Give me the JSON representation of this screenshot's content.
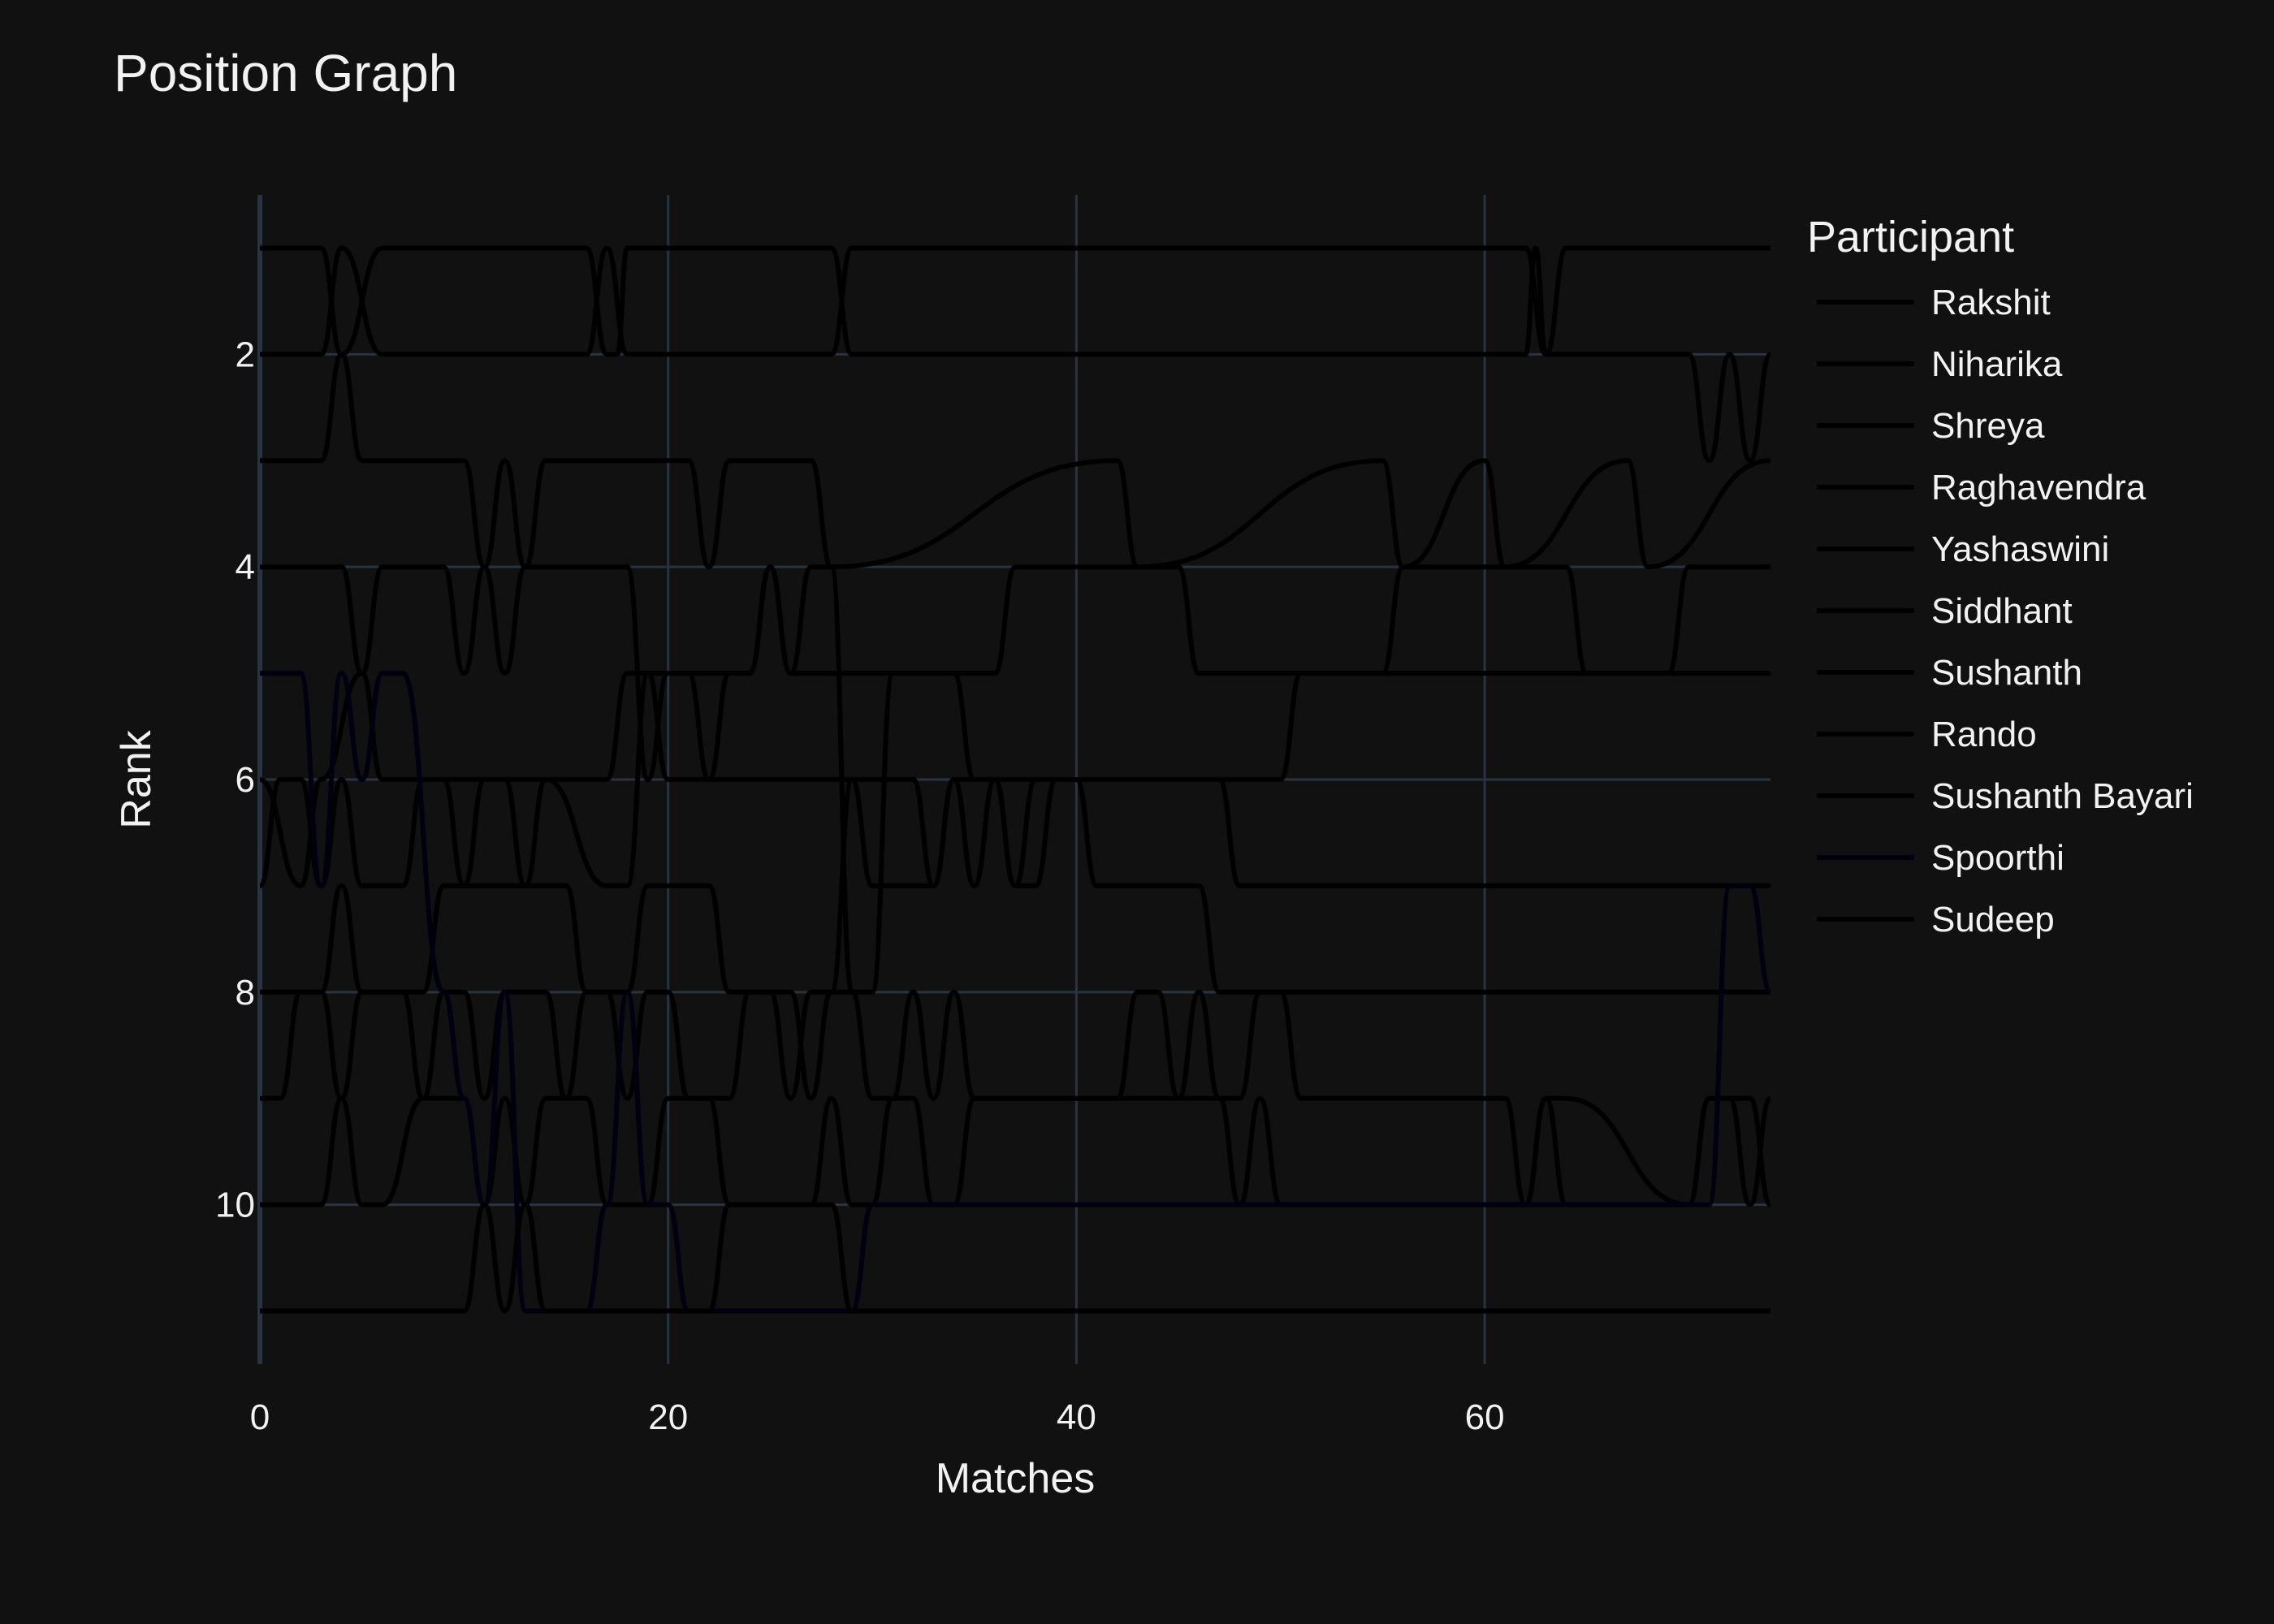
{
  "chart_data": {
    "type": "line",
    "title": "Position Graph",
    "xlabel": "Matches",
    "ylabel": "Rank",
    "xlim": [
      0,
      74
    ],
    "ylim": [
      11.5,
      0.5
    ],
    "y_reversed": true,
    "xticks": [
      0,
      20,
      40,
      60
    ],
    "yticks": [
      2,
      4,
      6,
      8,
      10
    ],
    "grid": true,
    "legend": {
      "title": "Participant",
      "placement": "right"
    },
    "colors": {
      "background": "#111111",
      "grid": "#283442",
      "text": "#f2f2f2",
      "line": "#000000",
      "line_alt": "#000010"
    },
    "series": [
      {
        "name": "Rakshit",
        "x": [
          0,
          3,
          4,
          6,
          7,
          16,
          17,
          17.5,
          18,
          28,
          29,
          62,
          62.5,
          63,
          64,
          74
        ],
        "y": [
          1,
          1,
          2,
          1,
          1,
          1,
          2,
          2,
          1,
          1,
          2,
          2,
          1,
          2,
          1,
          1
        ]
      },
      {
        "name": "Niharika",
        "x": [
          0,
          3,
          4,
          6,
          7,
          16,
          17,
          18,
          28,
          29,
          62,
          63,
          64,
          70,
          71,
          72,
          73,
          74
        ],
        "y": [
          2,
          2,
          1,
          2,
          2,
          2,
          1,
          2,
          2,
          1,
          1,
          2,
          2,
          2,
          3,
          2,
          3,
          2
        ]
      },
      {
        "name": "Shreya",
        "x": [
          0,
          3,
          4,
          5,
          10,
          11,
          12,
          13,
          14,
          21,
          22,
          23,
          27,
          28,
          42,
          43,
          55,
          56,
          60,
          61,
          67,
          68,
          74
        ],
        "y": [
          3,
          3,
          2,
          3,
          3,
          4,
          3,
          4,
          3,
          3,
          4,
          3,
          3,
          4,
          3,
          4,
          3,
          4,
          3,
          4,
          3,
          4,
          3
        ]
      },
      {
        "name": "Raghavendra",
        "x": [
          0,
          4,
          5,
          6,
          9,
          10,
          11,
          12,
          13,
          18,
          19,
          20,
          24,
          25,
          26,
          36,
          37,
          45,
          46,
          55,
          56,
          64,
          65,
          69,
          70,
          74
        ],
        "y": [
          4,
          4,
          5,
          4,
          4,
          5,
          4,
          5,
          4,
          4,
          6,
          5,
          5,
          4,
          5,
          5,
          4,
          4,
          5,
          5,
          4,
          4,
          5,
          5,
          4,
          4
        ]
      },
      {
        "name": "Yashaswini",
        "x": [
          0,
          2,
          3,
          5,
          6,
          7,
          14,
          17,
          18,
          19,
          21,
          22,
          23,
          29,
          30,
          33,
          34,
          35,
          36,
          37,
          38,
          39,
          47,
          48,
          74
        ],
        "y": [
          6,
          7,
          6,
          5,
          6,
          6,
          6,
          7,
          7,
          5,
          5,
          6,
          6,
          6,
          7,
          7,
          6,
          7,
          6,
          7,
          7,
          6,
          6,
          7,
          7
        ]
      },
      {
        "name": "Siddhant",
        "x": [
          0,
          1,
          2,
          3,
          4,
          5,
          7,
          8,
          9,
          10,
          11,
          12,
          13,
          14,
          17,
          18,
          19,
          20,
          22,
          23,
          24,
          25,
          26,
          27,
          28,
          29,
          30,
          31,
          34,
          35,
          50,
          51,
          74
        ],
        "y": [
          7,
          6,
          6,
          7,
          6,
          7,
          7,
          6,
          6,
          7,
          6,
          6,
          7,
          6,
          6,
          5,
          5,
          6,
          6,
          5,
          5,
          4,
          5,
          4,
          4,
          8,
          8,
          5,
          5,
          6,
          6,
          5,
          5
        ]
      },
      {
        "name": "Sushanth",
        "x": [
          0,
          1,
          3,
          4,
          5,
          6,
          8,
          9,
          10,
          12,
          13,
          15,
          16,
          17,
          18,
          19,
          20,
          22,
          23,
          25,
          26,
          27,
          28,
          29,
          30,
          32,
          33,
          34,
          36,
          37,
          38,
          40,
          41,
          46,
          47,
          74
        ],
        "y": [
          8,
          8,
          8,
          7,
          8,
          8,
          8,
          7,
          7,
          7,
          7,
          7,
          8,
          8,
          8,
          7,
          7,
          7,
          8,
          8,
          9,
          8,
          8,
          6,
          6,
          6,
          7,
          6,
          6,
          7,
          6,
          6,
          7,
          7,
          8,
          8
        ]
      },
      {
        "name": "Rando",
        "x": [
          0,
          1,
          2,
          3,
          4,
          5,
          7,
          8,
          9,
          10,
          11,
          12,
          14,
          15,
          16,
          17,
          18,
          19,
          20,
          21,
          23,
          24,
          25,
          26,
          27,
          28,
          29,
          30,
          31,
          32,
          33,
          34,
          35,
          42,
          43,
          44,
          45,
          46,
          47,
          48,
          49,
          50,
          51,
          61,
          62,
          63,
          64,
          70,
          71,
          72,
          73,
          74
        ],
        "y": [
          9,
          9,
          8,
          8,
          9,
          8,
          8,
          9,
          8,
          8,
          9,
          8,
          8,
          9,
          8,
          8,
          9,
          8,
          8,
          9,
          9,
          8,
          8,
          8,
          9,
          8,
          8,
          9,
          9,
          8,
          9,
          8,
          9,
          9,
          8,
          8,
          9,
          8,
          9,
          9,
          8,
          8,
          9,
          9,
          10,
          9,
          10,
          10,
          9,
          9,
          10,
          9
        ]
      },
      {
        "name": "Sushanth Bayari",
        "x": [
          0,
          1,
          3,
          4,
          5,
          6,
          8,
          10,
          11,
          12,
          13,
          14,
          16,
          17,
          19,
          20,
          22,
          23,
          24,
          27,
          28,
          29,
          30,
          31,
          32,
          33,
          34,
          35,
          47,
          48,
          49,
          50,
          62,
          63,
          64,
          70,
          71,
          73,
          74
        ],
        "y": [
          10,
          10,
          10,
          9,
          10,
          10,
          9,
          9,
          10,
          9,
          10,
          9,
          9,
          10,
          10,
          9,
          9,
          10,
          10,
          10,
          9,
          10,
          10,
          9,
          9,
          10,
          10,
          9,
          9,
          10,
          9,
          10,
          10,
          9,
          9,
          10,
          9,
          9,
          10
        ]
      },
      {
        "name": "Spoorthi",
        "x": [
          0,
          1,
          2,
          3,
          4,
          5,
          6,
          7,
          9,
          10,
          11,
          12,
          13,
          14,
          16,
          17,
          18,
          19,
          20,
          21,
          22,
          23,
          29,
          30,
          47,
          48,
          71,
          72,
          73,
          74
        ],
        "y": [
          5,
          5,
          5,
          7,
          5,
          6,
          5,
          5,
          8,
          9,
          10,
          8,
          11,
          11,
          11,
          10,
          8,
          10,
          10,
          11,
          11,
          11,
          11,
          10,
          10,
          10,
          10,
          7,
          7,
          8
        ]
      },
      {
        "name": "Sudeep",
        "x": [
          0,
          5,
          6,
          7,
          10,
          11,
          12,
          13,
          14,
          17,
          18,
          22,
          23,
          28,
          29,
          74
        ],
        "y": [
          11,
          11,
          11,
          11,
          11,
          10,
          11,
          10,
          11,
          11,
          11,
          11,
          10,
          10,
          11,
          11
        ]
      }
    ]
  }
}
